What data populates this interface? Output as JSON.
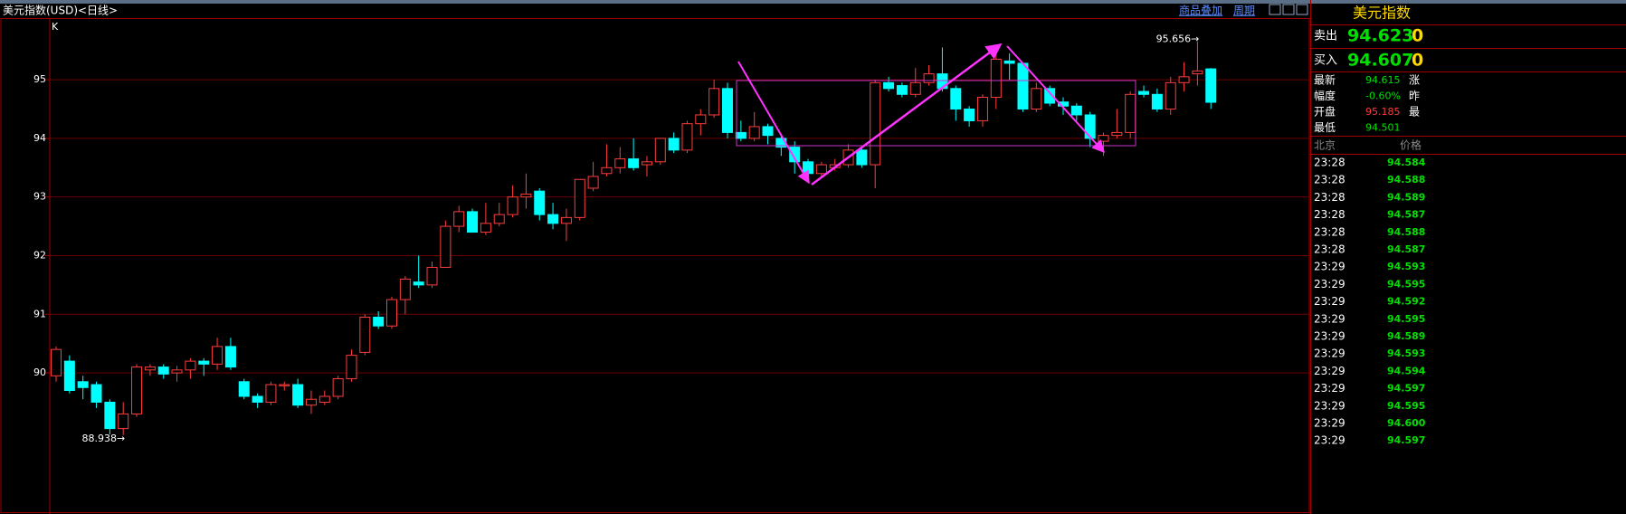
{
  "header": {
    "title": "美元指数(USD)<日线>",
    "overlay": "商品叠加",
    "period": "周期"
  },
  "chart_data": {
    "type": "candlestick",
    "corner_label": "K",
    "open": [
      89.95,
      90.2,
      89.85,
      89.8,
      89.5,
      89.05,
      89.3,
      90.05,
      90.1,
      90.0,
      90.05,
      90.2,
      90.15,
      90.45,
      89.85,
      89.6,
      89.5,
      89.78,
      89.8,
      89.45,
      89.5,
      89.6,
      89.9,
      90.35,
      90.95,
      90.8,
      91.25,
      91.55,
      91.5,
      91.8,
      92.5,
      92.75,
      92.4,
      92.55,
      92.7,
      93.0,
      93.1,
      92.7,
      92.55,
      92.65,
      93.15,
      93.4,
      93.5,
      93.65,
      93.55,
      93.6,
      94.0,
      93.8,
      94.25,
      94.4,
      94.85,
      94.1,
      94.0,
      94.2,
      94.0,
      93.85,
      93.6,
      93.4,
      93.5,
      93.55,
      93.8,
      93.55,
      94.95,
      94.9,
      94.75,
      94.95,
      95.1,
      94.85,
      94.5,
      94.3,
      94.7,
      95.32,
      95.28,
      94.5,
      94.85,
      94.62,
      94.55,
      94.4,
      93.95,
      94.05,
      94.1,
      94.8,
      94.75,
      94.5,
      94.95,
      95.1,
      95.185
    ],
    "high": [
      90.45,
      90.3,
      89.95,
      89.85,
      89.55,
      89.5,
      90.15,
      90.15,
      90.15,
      90.12,
      90.25,
      90.25,
      90.6,
      90.6,
      89.9,
      89.65,
      89.85,
      89.85,
      89.9,
      89.7,
      89.7,
      89.95,
      90.4,
      91.0,
      91.05,
      91.3,
      91.65,
      92.0,
      91.9,
      92.6,
      92.85,
      92.8,
      92.9,
      92.9,
      93.2,
      93.4,
      93.15,
      92.9,
      92.8,
      93.3,
      93.6,
      93.9,
      93.85,
      94.0,
      93.7,
      94.0,
      94.1,
      94.3,
      94.5,
      95.0,
      94.95,
      94.3,
      94.45,
      94.25,
      94.05,
      93.95,
      93.65,
      93.6,
      93.65,
      93.9,
      93.85,
      95.0,
      95.05,
      94.95,
      95.2,
      95.25,
      95.55,
      94.9,
      94.55,
      94.75,
      95.55,
      95.45,
      95.3,
      94.95,
      94.9,
      94.7,
      94.6,
      94.45,
      94.1,
      94.5,
      94.8,
      94.9,
      94.85,
      95.05,
      95.3,
      95.656,
      95.2
    ],
    "low": [
      89.85,
      89.65,
      89.55,
      89.4,
      88.95,
      88.938,
      89.25,
      89.95,
      89.9,
      89.85,
      89.9,
      89.95,
      90.05,
      90.05,
      89.55,
      89.4,
      89.45,
      89.7,
      89.4,
      89.3,
      89.45,
      89.55,
      89.85,
      90.3,
      90.75,
      90.75,
      91.0,
      91.45,
      91.45,
      91.8,
      92.4,
      92.4,
      92.35,
      92.5,
      92.65,
      92.8,
      92.6,
      92.45,
      92.25,
      92.6,
      93.1,
      93.35,
      93.4,
      93.45,
      93.35,
      93.55,
      93.75,
      93.75,
      94.05,
      94.35,
      94.0,
      93.95,
      93.95,
      93.9,
      93.7,
      93.4,
      93.25,
      93.35,
      93.45,
      93.5,
      93.5,
      93.15,
      94.8,
      94.7,
      94.7,
      94.9,
      94.8,
      94.3,
      94.2,
      94.2,
      94.5,
      95.0,
      94.45,
      94.45,
      94.55,
      94.4,
      94.3,
      93.85,
      93.7,
      94.0,
      94.0,
      94.7,
      94.45,
      94.4,
      94.8,
      94.9,
      94.501
    ],
    "close": [
      90.4,
      89.7,
      89.75,
      89.5,
      89.05,
      89.3,
      90.1,
      90.1,
      89.98,
      90.05,
      90.2,
      90.15,
      90.45,
      90.1,
      89.6,
      89.5,
      89.8,
      89.8,
      89.45,
      89.55,
      89.6,
      89.9,
      90.3,
      90.95,
      90.8,
      91.25,
      91.6,
      91.5,
      91.8,
      92.5,
      92.75,
      92.4,
      92.55,
      92.7,
      93.0,
      93.05,
      92.7,
      92.55,
      92.65,
      93.3,
      93.35,
      93.5,
      93.65,
      93.5,
      93.6,
      94.0,
      93.8,
      94.25,
      94.4,
      94.85,
      94.1,
      94.0,
      94.2,
      94.05,
      93.85,
      93.6,
      93.4,
      93.55,
      93.55,
      93.8,
      93.55,
      94.95,
      94.85,
      94.75,
      94.95,
      95.1,
      94.85,
      94.5,
      94.3,
      94.7,
      95.35,
      95.28,
      94.5,
      94.85,
      94.6,
      94.55,
      94.4,
      94.0,
      94.05,
      94.1,
      94.75,
      94.75,
      94.5,
      94.95,
      95.05,
      95.15,
      94.615
    ],
    "extreme_labels": [
      {
        "index": 5,
        "value": 88.938,
        "label": "88.938→"
      },
      {
        "index": 85,
        "value": 95.656,
        "label": "95.656→"
      }
    ],
    "up_color": "#ff3c3c",
    "down_color": "#00ffff",
    "ylim": [
      88.72,
      96.02
    ],
    "yticks": [
      90,
      91,
      92,
      93,
      94,
      95
    ],
    "grid": true
  },
  "quote": {
    "title": "美元指数",
    "sell_label": "卖出",
    "sell": "94.623",
    "sell_tail": "0",
    "buy_label": "买入",
    "buy": "94.607",
    "buy_tail": "0",
    "rows": [
      [
        "最新",
        "94.615",
        "涨"
      ],
      [
        "幅度",
        "-0.60%",
        "昨"
      ],
      [
        "开盘",
        "95.185",
        "最"
      ],
      [
        "最低",
        "94.501"
      ]
    ]
  },
  "ticks": {
    "headers": [
      "北京",
      "价格"
    ],
    "rows": [
      [
        "23:28",
        "94.584"
      ],
      [
        "23:28",
        "94.588"
      ],
      [
        "23:28",
        "94.589"
      ],
      [
        "23:28",
        "94.587"
      ],
      [
        "23:28",
        "94.588"
      ],
      [
        "23:28",
        "94.587"
      ],
      [
        "23:29",
        "94.593"
      ],
      [
        "23:29",
        "94.595"
      ],
      [
        "23:29",
        "94.592"
      ],
      [
        "23:29",
        "94.595"
      ],
      [
        "23:29",
        "94.589"
      ],
      [
        "23:29",
        "94.593"
      ],
      [
        "23:29",
        "94.594"
      ],
      [
        "23:29",
        "94.597"
      ],
      [
        "23:29",
        "94.595"
      ],
      [
        "23:29",
        "94.600"
      ],
      [
        "23:29",
        "94.597"
      ]
    ]
  }
}
